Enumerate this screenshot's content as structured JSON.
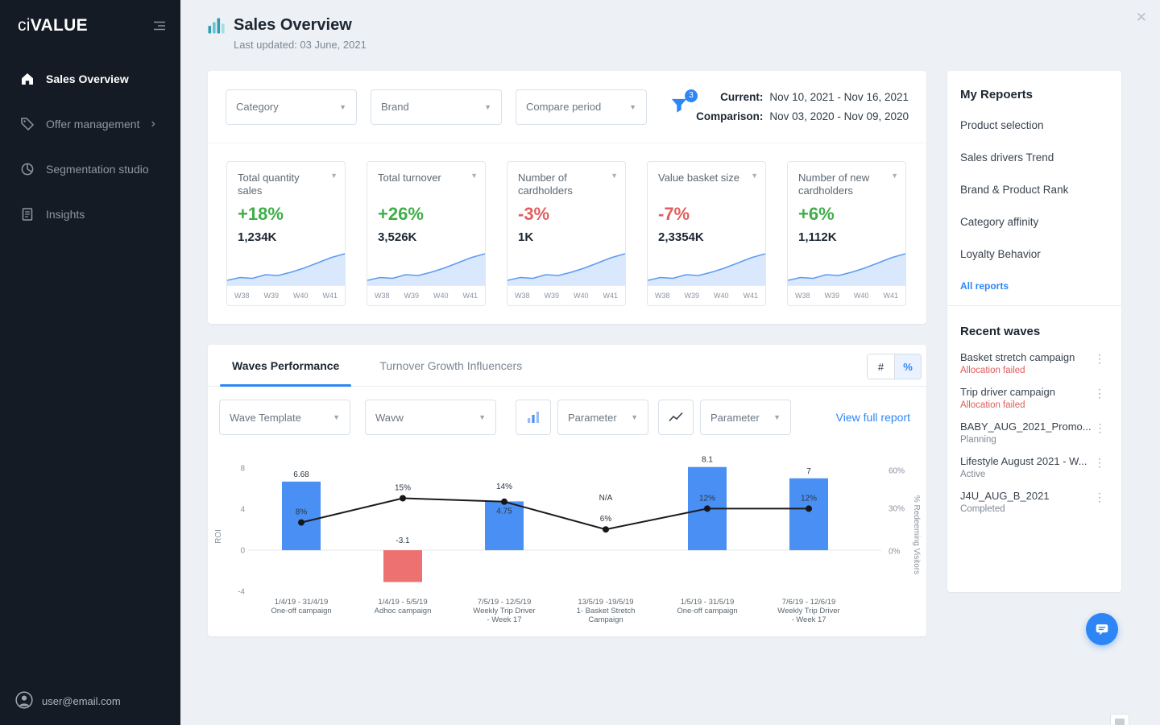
{
  "sidebar": {
    "logo": {
      "prefix": "ci",
      "suffix": "VALUE"
    },
    "items": [
      {
        "label": "Sales Overview",
        "icon": "home-icon",
        "active": true,
        "chevron": false
      },
      {
        "label": "Offer management",
        "icon": "tag-icon",
        "active": false,
        "chevron": true
      },
      {
        "label": "Segmentation studio",
        "icon": "segmentation-icon",
        "active": false,
        "chevron": false
      },
      {
        "label": "Insights",
        "icon": "insights-icon",
        "active": false,
        "chevron": false
      }
    ],
    "user_email": "user@email.com"
  },
  "header": {
    "title": "Sales Overview",
    "subtitle": "Last updated: 03 June, 2021"
  },
  "filters": {
    "category": "Category",
    "brand": "Brand",
    "compare_period": "Compare period",
    "badge": "3",
    "current_label": "Current:",
    "current_value": "Nov 10, 2021 - Nov 16, 2021",
    "comparison_label": "Comparison:",
    "comparison_value": "Nov 03, 2020 - Nov 09, 2020"
  },
  "kpis": [
    {
      "title": "Total quantity sales",
      "change": "+18%",
      "value": "1,234K",
      "direction": "up"
    },
    {
      "title": "Total turnover",
      "change": "+26%",
      "value": "3,526K",
      "direction": "up"
    },
    {
      "title": "Number of cardholders",
      "change": "-3%",
      "value": "1K",
      "direction": "down"
    },
    {
      "title": "Value basket size",
      "change": "-7%",
      "value": "2,3354K",
      "direction": "down"
    },
    {
      "title": "Number of new cardholders",
      "change": "+6%",
      "value": "1,112K",
      "direction": "up"
    }
  ],
  "kpi_weeks": [
    "W38",
    "W39",
    "W40",
    "W41"
  ],
  "waves_section": {
    "tab_performance": "Waves Performance",
    "tab_influencers": "Turnover Growth Influencers",
    "toggle_number": "#",
    "toggle_percent": "%",
    "wave_template": "Wave Template",
    "wave": "Wavw",
    "parameter_bar": "Parameter",
    "parameter_line": "Parameter",
    "view_full_report": "View full report"
  },
  "chart_data": {
    "type": "combo",
    "series": [
      {
        "name": "ROI",
        "type": "bar",
        "values": [
          6.68,
          -3.1,
          4.75,
          null,
          8.1,
          7
        ],
        "labels": [
          "6.68",
          "-3.1",
          "4.75",
          "N/A",
          "8.1",
          "7"
        ]
      },
      {
        "name": "% Redeeming Visitors",
        "type": "line",
        "values": [
          8,
          15,
          14,
          6,
          12,
          12
        ],
        "labels": [
          "8%",
          "15%",
          "14%",
          "6%",
          "12%",
          "12%"
        ]
      }
    ],
    "categories": [
      {
        "dates": "1/4/19 - 31/4/19",
        "name_lines": [
          "One-off campaign"
        ]
      },
      {
        "dates": "1/4/19 - 5/5/19",
        "name_lines": [
          "Adhoc campaign"
        ]
      },
      {
        "dates": "7/5/19 - 12/5/19",
        "name_lines": [
          "Weekly Trip Driver",
          "- Week 17"
        ]
      },
      {
        "dates": "13/5/19 -19/5/19",
        "name_lines": [
          "1- Basket Stretch",
          "Campaign"
        ]
      },
      {
        "dates": "1/5/19 - 31/5/19",
        "name_lines": [
          "One-off campaign"
        ]
      },
      {
        "dates": "7/6/19 - 12/6/19",
        "name_lines": [
          "Weekly Trip Driver",
          "- Week 17"
        ]
      }
    ],
    "y_left": {
      "label": "ROI",
      "ticks": [
        8,
        4,
        0,
        -4
      ]
    },
    "y_right": {
      "label": "% Redeeming Visitors",
      "ticks": [
        "60%",
        "30%",
        "0%"
      ]
    },
    "bar_color": "#4a90f4",
    "bar_negative_color": "#ee7172",
    "line_color": "#1b1b1b"
  },
  "reports_panel": {
    "title": "My Repoerts",
    "items": [
      "Product selection",
      "Sales drivers Trend",
      "Brand & Product Rank",
      "Category affinity",
      "Loyalty Behavior"
    ],
    "all_reports": "All reports",
    "recent_title": "Recent waves",
    "recent_waves": [
      {
        "name": "Basket stretch campaign",
        "status": "Allocation failed",
        "failed": true
      },
      {
        "name": "Trip driver campaign",
        "status": "Allocation failed",
        "failed": true
      },
      {
        "name": "BABY_AUG_2021_Promo...",
        "status": "Planning",
        "failed": false
      },
      {
        "name": "Lifestyle August 2021 - W...",
        "status": "Active",
        "failed": false
      },
      {
        "name": "J4U_AUG_B_2021",
        "status": "Completed",
        "failed": false
      }
    ]
  },
  "colors": {
    "accent": "#2e86f6",
    "positive": "#3fae49",
    "negative": "#e25f5f",
    "sidebar_bg": "#141b24"
  }
}
